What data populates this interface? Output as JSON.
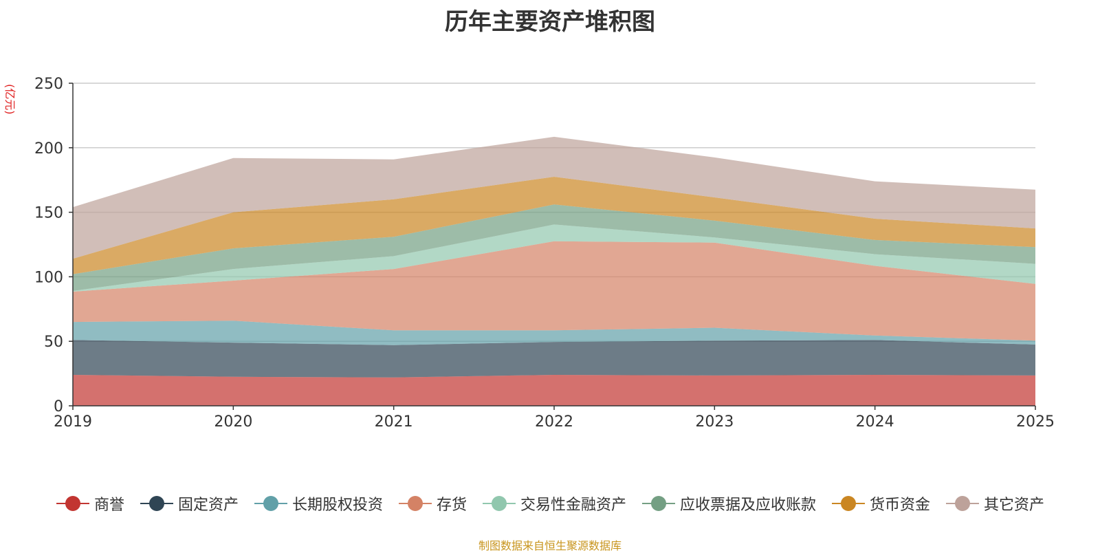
{
  "chart_data": {
    "type": "area",
    "stacked": true,
    "title": "历年主要资产堆积图",
    "unit_label": "(亿元)",
    "categories": [
      "2019",
      "2020",
      "2021",
      "2022",
      "2023",
      "2024",
      "2025"
    ],
    "ylim": [
      0,
      250
    ],
    "yticks": [
      0,
      50,
      100,
      150,
      200,
      250
    ],
    "grid": true,
    "legend_position": "bottom",
    "series": [
      {
        "name": "商誉",
        "color": "#c23531",
        "values": [
          24,
          22.5,
          22,
          24,
          23.5,
          24,
          23.5
        ]
      },
      {
        "name": "固定资产",
        "color": "#2f4554",
        "values": [
          27,
          26.5,
          25,
          25.5,
          27,
          27,
          24
        ]
      },
      {
        "name": "长期股权投资",
        "color": "#61a0a8",
        "values": [
          14,
          17,
          11.5,
          9,
          10,
          3.5,
          3
        ]
      },
      {
        "name": "存货",
        "color": "#d48265",
        "values": [
          23.5,
          31,
          47.5,
          69,
          66,
          54,
          44
        ]
      },
      {
        "name": "交易性金融资产",
        "color": "#91c7ae",
        "values": [
          0.5,
          9,
          10,
          13,
          4,
          9,
          15.5
        ]
      },
      {
        "name": "应收票据及应收账款",
        "color": "#749f83",
        "values": [
          13,
          16,
          15,
          15.5,
          13,
          11,
          13
        ]
      },
      {
        "name": "货币资金",
        "color": "#ca8622",
        "values": [
          12,
          28,
          29,
          21.5,
          18,
          16.5,
          14.5
        ]
      },
      {
        "name": "其它资产",
        "color": "#bda29a",
        "values": [
          40,
          42,
          31,
          31,
          31,
          29,
          30
        ]
      }
    ],
    "source": "制图数据来自恒生聚源数据库"
  }
}
